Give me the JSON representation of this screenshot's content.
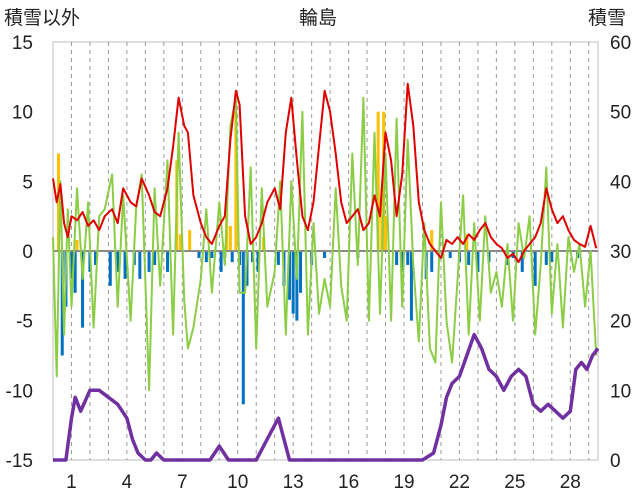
{
  "chart_data": {
    "type": "line",
    "title": "輪島",
    "left_axis_label": "積雪以外",
    "right_axis_label": "積雪",
    "left_ylim": [
      -15,
      15
    ],
    "left_yticks": [
      15,
      10,
      5,
      0,
      -5,
      -10,
      -15
    ],
    "right_ylim": [
      0,
      60
    ],
    "right_yticks": [
      60,
      50,
      40,
      30,
      20,
      10,
      0
    ],
    "xlim": [
      0,
      29.5
    ],
    "xticks": [
      1,
      4,
      7,
      10,
      13,
      16,
      19,
      22,
      25,
      28
    ],
    "grid": "vertical dashed, one per day",
    "legend": "none",
    "series": [
      {
        "role": "red line (left axis)",
        "color": "#e00000",
        "x": [
          0,
          0.2,
          0.4,
          0.6,
          0.8,
          1,
          1.3,
          1.6,
          1.9,
          2.2,
          2.5,
          2.8,
          3.2,
          3.5,
          3.8,
          4.2,
          4.5,
          4.8,
          5.2,
          5.5,
          5.8,
          6.2,
          6.5,
          6.8,
          7.1,
          7.3,
          7.6,
          8.0,
          8.3,
          8.6,
          9.0,
          9.3,
          9.6,
          9.9,
          10.1,
          10.4,
          10.7,
          11.0,
          11.3,
          11.6,
          12.0,
          12.3,
          12.6,
          12.9,
          13.2,
          13.5,
          13.8,
          14.1,
          14.4,
          14.7,
          15.0,
          15.3,
          15.6,
          15.9,
          16.2,
          16.5,
          16.8,
          17.1,
          17.4,
          17.7,
          18.0,
          18.3,
          18.6,
          18.9,
          19.2,
          19.5,
          19.8,
          20.1,
          20.4,
          20.7,
          21.0,
          21.3,
          21.6,
          21.9,
          22.2,
          22.5,
          22.8,
          23.1,
          23.4,
          23.7,
          24.0,
          24.3,
          24.6,
          24.9,
          25.2,
          25.5,
          25.8,
          26.1,
          26.4,
          26.7,
          27.0,
          27.3,
          27.6,
          27.9,
          28.2,
          28.5,
          28.8,
          29.1,
          29.4
        ],
        "values": [
          5.2,
          3.5,
          4.8,
          2.0,
          1.0,
          2.5,
          2.2,
          2.8,
          1.8,
          2.2,
          1.5,
          2.5,
          3.0,
          2.0,
          4.5,
          3.5,
          3.2,
          5.2,
          4.0,
          2.8,
          2.5,
          4.5,
          7.5,
          11.0,
          9.0,
          8.5,
          4.0,
          2.0,
          1.0,
          0.5,
          1.8,
          2.5,
          8.0,
          11.5,
          10.5,
          2.5,
          0.5,
          1.0,
          2.0,
          3.5,
          4.5,
          3.0,
          8.5,
          11.0,
          6.5,
          2.5,
          1.5,
          3.5,
          7.5,
          11.5,
          10.0,
          7.0,
          3.5,
          2.0,
          2.5,
          3.0,
          1.5,
          2.0,
          4.0,
          2.5,
          8.5,
          6.5,
          2.5,
          5.5,
          12.0,
          9.0,
          3.5,
          1.5,
          0.5,
          0,
          -0.5,
          0.8,
          0.5,
          1.0,
          0.5,
          1.2,
          0.8,
          1.5,
          2.0,
          1.0,
          0.5,
          0.2,
          -0.5,
          -0.2,
          -0.8,
          0,
          0.5,
          1.0,
          2.0,
          4.5,
          3.0,
          2.0,
          2.5,
          1.5,
          0.8,
          0.5,
          0.3,
          1.8,
          0.2
        ]
      },
      {
        "role": "green line (left axis)",
        "color": "#8ccd46",
        "x": [
          0,
          0.2,
          0.4,
          0.6,
          0.8,
          1,
          1.3,
          1.6,
          1.9,
          2.2,
          2.5,
          2.8,
          3.2,
          3.5,
          3.8,
          4.2,
          4.5,
          4.8,
          5.2,
          5.5,
          5.8,
          6.2,
          6.5,
          6.8,
          7.1,
          7.3,
          7.6,
          8.0,
          8.3,
          8.6,
          9.0,
          9.3,
          9.6,
          9.9,
          10.1,
          10.4,
          10.7,
          11.0,
          11.3,
          11.6,
          12.0,
          12.3,
          12.6,
          12.9,
          13.2,
          13.5,
          13.8,
          14.1,
          14.4,
          14.7,
          15.0,
          15.3,
          15.6,
          15.9,
          16.2,
          16.5,
          16.8,
          17.1,
          17.4,
          17.7,
          18.0,
          18.3,
          18.6,
          18.9,
          19.2,
          19.5,
          19.8,
          20.1,
          20.4,
          20.7,
          21.0,
          21.3,
          21.6,
          21.9,
          22.2,
          22.5,
          22.8,
          23.1,
          23.4,
          23.7,
          24.0,
          24.3,
          24.6,
          24.9,
          25.2,
          25.5,
          25.8,
          26.1,
          26.4,
          26.7,
          27.0,
          27.3,
          27.6,
          27.9,
          28.2,
          28.5,
          28.8,
          29.1,
          29.4
        ],
        "values": [
          1.0,
          -9.0,
          5.0,
          -6.0,
          3.0,
          -4.0,
          4.5,
          -2.0,
          3.5,
          -5.5,
          2.5,
          3.0,
          5.5,
          -4.0,
          4.0,
          -5.0,
          3.0,
          5.5,
          -10.0,
          4.5,
          -2.5,
          6.5,
          -6.0,
          8.5,
          -3.5,
          -7.0,
          -5.5,
          -2.0,
          3.0,
          -3.0,
          3.5,
          -1.0,
          9.0,
          11.0,
          -3.0,
          -3.0,
          6.0,
          -7.0,
          4.5,
          -4.0,
          -1.5,
          5.0,
          -6.0,
          5.0,
          -2.0,
          10.0,
          -6.0,
          2.0,
          -4.5,
          -2.0,
          -4.0,
          4.5,
          -2.5,
          -5.0,
          7.0,
          -1.0,
          11.0,
          -5.0,
          8.5,
          -4.5,
          7.0,
          -5.0,
          9.5,
          -4.0,
          8.0,
          -1.0,
          -6.5,
          2.0,
          -7.0,
          -8.0,
          3.5,
          -5.0,
          -8.0,
          -2.0,
          4.0,
          -6.0,
          2.0,
          -5.0,
          2.5,
          -3.0,
          -1.5,
          -4.0,
          0.5,
          -5.0,
          2.0,
          -0.5,
          2.5,
          -6.0,
          -1.0,
          6.0,
          -4.5,
          0.5,
          -5.5,
          1.0,
          -1.5,
          0.5,
          -4.0,
          0.0,
          -7.5
        ]
      },
      {
        "role": "purple line (right axis)",
        "color": "#7030a0",
        "x": [
          0,
          0.7,
          1.0,
          1.2,
          1.5,
          2.0,
          2.5,
          3.0,
          3.5,
          4.0,
          4.3,
          4.6,
          5.0,
          5.3,
          5.6,
          6.0,
          6.5,
          7.0,
          8.0,
          8.5,
          9.0,
          9.5,
          10.0,
          11.0,
          11.4,
          11.8,
          12.2,
          12.6,
          12.8,
          13.0,
          14.0,
          15.0,
          16.0,
          17.0,
          18.0,
          19.0,
          20.0,
          20.6,
          21.0,
          21.3,
          21.6,
          22.0,
          22.4,
          22.8,
          23.2,
          23.6,
          24.0,
          24.4,
          24.8,
          25.2,
          25.6,
          26.0,
          26.4,
          26.8,
          27.2,
          27.6,
          28.0,
          28.3,
          28.6,
          28.9,
          29.2,
          29.5
        ],
        "values": [
          0,
          0,
          6,
          9,
          7,
          10,
          10,
          9,
          8,
          6,
          3,
          1,
          0,
          0,
          1,
          0,
          0,
          0,
          0,
          0,
          2,
          0,
          0,
          0,
          2,
          4,
          6,
          2,
          0,
          0,
          0,
          0,
          0,
          0,
          0,
          0,
          0,
          1,
          5,
          9,
          11,
          12,
          15,
          18,
          16,
          13,
          12,
          10,
          12,
          13,
          12,
          8,
          7,
          8,
          7,
          6,
          7,
          13,
          14,
          13,
          15,
          16
        ]
      },
      {
        "role": "orange bars (left axis)",
        "color": "#ffc000",
        "x": [
          0.3,
          1.3,
          6.7,
          6.9,
          7.4,
          9.4,
          9.6,
          9.9,
          11.4,
          17.6,
          17.8,
          17.9,
          18.0,
          20.5,
          22.4
        ],
        "values": [
          7.0,
          0.8,
          6.5,
          1.2,
          1.5,
          3.5,
          1.8,
          10.0,
          1.0,
          10.0,
          4.5,
          10.0,
          2.5,
          1.5,
          1.2
        ]
      },
      {
        "role": "blue bars (left axis)",
        "color": "#0070c0",
        "x": [
          0.5,
          0.7,
          1.0,
          1.2,
          1.6,
          2.0,
          2.3,
          3.1,
          3.5,
          3.9,
          4.4,
          4.7,
          5.2,
          5.5,
          6.2,
          7.9,
          8.3,
          8.6,
          9.1,
          9.3,
          9.7,
          10.1,
          10.3,
          10.5,
          10.8,
          11.1,
          12.2,
          12.5,
          12.8,
          13.0,
          13.2,
          13.4,
          14.0,
          14.7,
          16.5,
          18.6,
          18.9,
          19.2,
          19.4,
          20.2,
          20.5,
          21.5,
          22.0,
          22.5,
          23.0,
          23.6,
          24.6,
          24.9,
          25.4,
          26.1,
          26.7,
          27.0,
          28.4
        ],
        "values": [
          -7.5,
          -4.0,
          -2.0,
          -3.0,
          -5.5,
          -1.5,
          -1.0,
          -2.5,
          -1.5,
          -2.0,
          -1.0,
          -2.0,
          -1.5,
          -1.0,
          -1.5,
          -0.5,
          -0.8,
          -0.5,
          -1.5,
          -0.5,
          -0.8,
          -1.0,
          -11.0,
          -2.5,
          -0.8,
          -1.5,
          -1.0,
          -2.5,
          -3.5,
          -4.5,
          -5.0,
          -3.0,
          -1.0,
          -0.5,
          -0.5,
          -1.0,
          -1.5,
          -1.0,
          -5.0,
          -2.0,
          -1.5,
          -0.5,
          -0.8,
          -1.0,
          -1.5,
          -0.8,
          -1.0,
          -0.5,
          -1.5,
          -2.5,
          -1.0,
          -0.8,
          -0.5
        ]
      }
    ]
  }
}
